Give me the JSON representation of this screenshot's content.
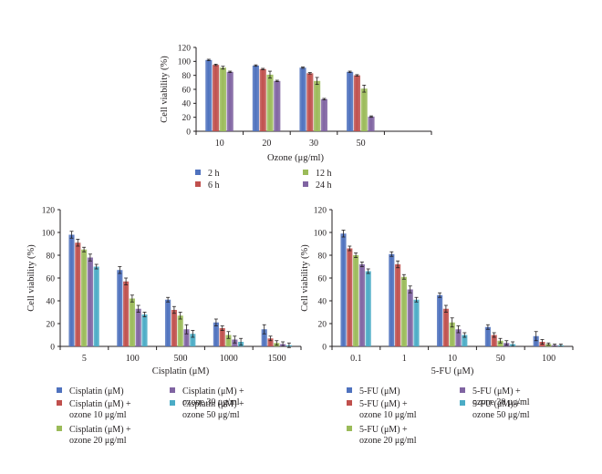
{
  "chart_data": [
    {
      "type": "bar",
      "categories": [
        "10",
        "20",
        "30",
        "50"
      ],
      "xlabel": "Ozone (μg/ml)",
      "ylabel": "Cell viability (%)",
      "ylim": [
        0,
        120
      ],
      "yticks": [
        0,
        20,
        40,
        60,
        80,
        100,
        120
      ],
      "extra_empty_category": true,
      "error_bars": true,
      "legend_placement": "bottom",
      "series": [
        {
          "name": "2 h",
          "color": "#4f72be",
          "values": [
            102,
            94,
            91,
            85
          ],
          "errors": [
            1,
            1,
            1,
            1
          ]
        },
        {
          "name": "6 h",
          "color": "#c0504d",
          "values": [
            95,
            89,
            83,
            80
          ],
          "errors": [
            1,
            1,
            1,
            1
          ]
        },
        {
          "name": "12 h",
          "color": "#9bbb59",
          "values": [
            91,
            81,
            72,
            61
          ],
          "errors": [
            2,
            5,
            5,
            5
          ]
        },
        {
          "name": "24 h",
          "color": "#8064a2",
          "values": [
            85,
            72,
            46,
            21
          ],
          "errors": [
            1,
            1,
            1,
            1
          ]
        }
      ]
    },
    {
      "type": "bar",
      "categories": [
        "5",
        "100",
        "500",
        "1000",
        "1500"
      ],
      "xlabel": "Cisplatin (μM)",
      "ylabel": "Cell viability (%)",
      "ylim": [
        0,
        120
      ],
      "yticks": [
        0,
        20,
        40,
        60,
        80,
        100,
        120
      ],
      "error_bars": true,
      "legend_placement": "bottom",
      "series": [
        {
          "name": "Cisplatin (μM)",
          "color": "#4f72be",
          "values": [
            98,
            67,
            41,
            21,
            15
          ],
          "errors": [
            3,
            3,
            2,
            3,
            4
          ]
        },
        {
          "name": "Cisplatin (μM) + ozone 10 μg/ml",
          "color": "#c0504d",
          "values": [
            91,
            57,
            32,
            16,
            7
          ],
          "errors": [
            3,
            3,
            3,
            2,
            2
          ]
        },
        {
          "name": "Cisplatin (μM) + ozone 20 μg/ml",
          "color": "#9bbb59",
          "values": [
            85,
            42,
            27,
            10,
            3
          ],
          "errors": [
            2,
            3,
            3,
            3,
            2
          ]
        },
        {
          "name": "Cisplatin (μM) + ozone 30 μg/ml",
          "color": "#8064a2",
          "values": [
            78,
            33,
            15,
            6,
            2
          ],
          "errors": [
            3,
            3,
            4,
            3,
            2
          ]
        },
        {
          "name": "Cisplatin (μM) + ozone 50 μg/ml",
          "color": "#4bacc6",
          "values": [
            70,
            28,
            11,
            4,
            1
          ],
          "errors": [
            2,
            2,
            3,
            3,
            2
          ]
        }
      ]
    },
    {
      "type": "bar",
      "categories": [
        "0.1",
        "1",
        "10",
        "50",
        "100"
      ],
      "xlabel": "5-FU (μM)",
      "ylabel": "Cell viability (%)",
      "ylim": [
        0,
        120
      ],
      "yticks": [
        0,
        20,
        40,
        60,
        80,
        100,
        120
      ],
      "error_bars": true,
      "legend_placement": "bottom",
      "series": [
        {
          "name": "5-FU (μM)",
          "color": "#4f72be",
          "values": [
            99,
            81,
            45,
            17,
            9
          ],
          "errors": [
            3,
            2,
            2,
            2,
            4
          ]
        },
        {
          "name": "5-FU (μM) + ozone 10 μg/ml",
          "color": "#c0504d",
          "values": [
            86,
            72,
            33,
            10,
            4
          ],
          "errors": [
            2,
            3,
            3,
            2,
            2
          ]
        },
        {
          "name": "5-FU (μM) + ozone 20 μg/ml",
          "color": "#9bbb59",
          "values": [
            80,
            61,
            21,
            5,
            2
          ],
          "errors": [
            2,
            2,
            4,
            2,
            1
          ]
        },
        {
          "name": "5-FU (μM) + ozone 30 μg/ml",
          "color": "#8064a2",
          "values": [
            72,
            50,
            15,
            3,
            1
          ],
          "errors": [
            2,
            3,
            3,
            2,
            1
          ]
        },
        {
          "name": "5-FU (μM) + ozone 50 μg/ml",
          "color": "#4bacc6",
          "values": [
            66,
            41,
            10,
            2,
            1
          ],
          "errors": [
            2,
            2,
            2,
            2,
            1
          ]
        }
      ]
    }
  ]
}
